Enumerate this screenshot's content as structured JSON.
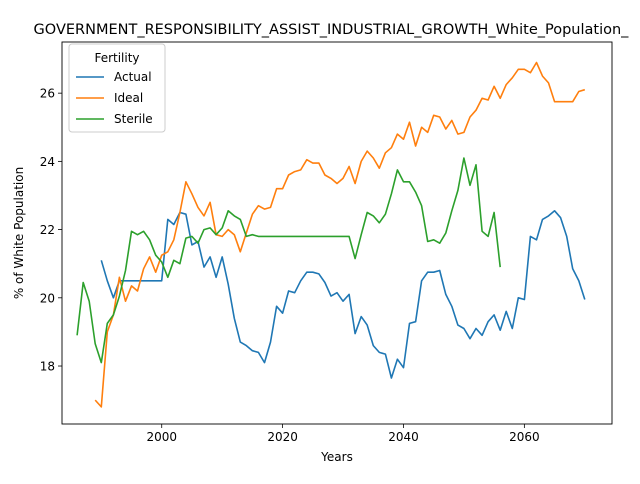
{
  "chart_data": {
    "type": "line",
    "title": "GOVERNMENT_RESPONSIBILITY_ASSIST_INDUSTRIAL_GROWTH_White_Population_",
    "xlabel": "Years",
    "ylabel": "% of White Population",
    "xlim": [
      1983.5,
      2074.5
    ],
    "ylim": [
      16.3,
      27.5
    ],
    "xticks": [
      2000,
      2020,
      2040,
      2060
    ],
    "xtick_labels": [
      "2000",
      "2020",
      "2040",
      "2060"
    ],
    "yticks": [
      18,
      20,
      22,
      24,
      26
    ],
    "ytick_labels": [
      "18",
      "20",
      "22",
      "24",
      "26"
    ],
    "grid": false,
    "legend": {
      "title": "Fertility",
      "placement": "top-left"
    },
    "series": [
      {
        "name": "Actual",
        "color": "#1f77b4",
        "x": [
          1990,
          1991,
          1992,
          1993,
          1994,
          1995,
          1996,
          1997,
          1998,
          1999,
          2000,
          2001,
          2002,
          2003,
          2004,
          2005,
          2006,
          2007,
          2008,
          2009,
          2010,
          2011,
          2012,
          2013,
          2014,
          2015,
          2016,
          2017,
          2018,
          2019,
          2020,
          2021,
          2022,
          2023,
          2024,
          2025,
          2026,
          2027,
          2028,
          2029,
          2030,
          2031,
          2032,
          2033,
          2034,
          2035,
          2036,
          2037,
          2038,
          2039,
          2040,
          2041,
          2042,
          2043,
          2044,
          2045,
          2046,
          2047,
          2048,
          2049,
          2050,
          2051,
          2052,
          2053,
          2054,
          2055,
          2056,
          2057,
          2058,
          2059,
          2060,
          2061,
          2062,
          2063,
          2064,
          2065,
          2066,
          2067,
          2068,
          2069,
          2070
        ],
        "y": [
          21.1,
          20.5,
          20.0,
          20.5,
          20.5,
          20.5,
          20.5,
          20.5,
          20.5,
          20.5,
          20.5,
          22.3,
          22.15,
          22.5,
          22.45,
          21.55,
          21.65,
          20.9,
          21.2,
          20.6,
          21.2,
          20.4,
          19.4,
          18.7,
          18.6,
          18.45,
          18.4,
          18.1,
          18.7,
          19.75,
          19.55,
          20.2,
          20.15,
          20.5,
          20.75,
          20.75,
          20.7,
          20.45,
          20.05,
          20.15,
          19.9,
          20.1,
          18.95,
          19.45,
          19.2,
          18.6,
          18.4,
          18.35,
          17.65,
          18.2,
          17.95,
          19.25,
          19.3,
          20.5,
          20.75,
          20.75,
          20.8,
          20.1,
          19.75,
          19.2,
          19.1,
          18.8,
          19.1,
          18.9,
          19.3,
          19.5,
          19.05,
          19.6,
          19.1,
          20.0,
          19.95,
          21.8,
          21.7,
          22.3,
          22.4,
          22.55,
          22.35,
          21.8,
          20.85,
          20.5,
          19.95
        ]
      },
      {
        "name": "Ideal",
        "color": "#ff7f0e",
        "x": [
          1989,
          1990,
          1991,
          1992,
          1993,
          1994,
          1995,
          1996,
          1997,
          1998,
          1999,
          2000,
          2001,
          2002,
          2003,
          2004,
          2005,
          2006,
          2007,
          2008,
          2009,
          2010,
          2011,
          2012,
          2013,
          2014,
          2015,
          2016,
          2017,
          2018,
          2019,
          2020,
          2021,
          2022,
          2023,
          2024,
          2025,
          2026,
          2027,
          2028,
          2029,
          2030,
          2031,
          2032,
          2033,
          2034,
          2035,
          2036,
          2037,
          2038,
          2039,
          2040,
          2041,
          2042,
          2043,
          2044,
          2045,
          2046,
          2047,
          2048,
          2049,
          2050,
          2051,
          2052,
          2053,
          2054,
          2055,
          2056,
          2057,
          2058,
          2059,
          2060,
          2061,
          2062,
          2063,
          2064,
          2065,
          2066,
          2067,
          2068,
          2069,
          2070
        ],
        "y": [
          17.0,
          16.8,
          19.0,
          19.5,
          20.6,
          19.9,
          20.35,
          20.2,
          20.85,
          21.2,
          20.75,
          21.25,
          21.35,
          21.7,
          22.5,
          23.4,
          23.05,
          22.65,
          22.4,
          22.8,
          21.85,
          21.8,
          22.0,
          21.85,
          21.35,
          21.9,
          22.45,
          22.7,
          22.6,
          22.65,
          23.2,
          23.2,
          23.6,
          23.7,
          23.75,
          24.05,
          23.95,
          23.95,
          23.6,
          23.5,
          23.35,
          23.5,
          23.85,
          23.35,
          24.0,
          24.3,
          24.1,
          23.8,
          24.25,
          24.4,
          24.8,
          24.65,
          25.15,
          24.45,
          25.0,
          24.85,
          25.35,
          25.3,
          24.95,
          25.2,
          24.8,
          24.85,
          25.3,
          25.5,
          25.85,
          25.8,
          26.2,
          25.85,
          26.25,
          26.45,
          26.7,
          26.7,
          26.6,
          26.9,
          26.5,
          26.3,
          25.75,
          25.75,
          25.75,
          25.75,
          26.05,
          26.1
        ]
      },
      {
        "name": "Sterile",
        "color": "#2ca02c",
        "x": [
          1986,
          1987,
          1988,
          1989,
          1990,
          1991,
          1992,
          1993,
          1994,
          1995,
          1996,
          1997,
          1998,
          1999,
          2000,
          2001,
          2002,
          2003,
          2004,
          2005,
          2006,
          2007,
          2008,
          2009,
          2010,
          2011,
          2012,
          2013,
          2014,
          2015,
          2016,
          2017,
          2018,
          2019,
          2020,
          2021,
          2022,
          2023,
          2024,
          2025,
          2026,
          2027,
          2028,
          2029,
          2030,
          2031,
          2032,
          2033,
          2034,
          2035,
          2036,
          2037,
          2038,
          2039,
          2040,
          2041,
          2042,
          2043,
          2044,
          2045,
          2046,
          2047,
          2048,
          2049,
          2050,
          2051,
          2052,
          2053,
          2054,
          2055,
          2056
        ],
        "y": [
          18.9,
          20.45,
          19.9,
          18.65,
          18.1,
          19.25,
          19.5,
          20.05,
          20.8,
          21.95,
          21.85,
          21.95,
          21.7,
          21.25,
          21.05,
          20.6,
          21.1,
          21.0,
          21.75,
          21.8,
          21.6,
          22.0,
          22.05,
          21.85,
          22.05,
          22.55,
          22.4,
          22.3,
          21.8,
          21.85,
          21.8,
          21.8,
          21.8,
          21.8,
          21.8,
          21.8,
          21.8,
          21.8,
          21.8,
          21.8,
          21.8,
          21.8,
          21.8,
          21.8,
          21.8,
          21.8,
          21.15,
          21.85,
          22.5,
          22.4,
          22.2,
          22.45,
          23.05,
          23.75,
          23.4,
          23.4,
          23.1,
          22.7,
          21.65,
          21.7,
          21.6,
          21.9,
          22.55,
          23.15,
          24.1,
          23.3,
          23.9,
          21.95,
          21.8,
          22.5,
          20.9
        ]
      }
    ]
  }
}
